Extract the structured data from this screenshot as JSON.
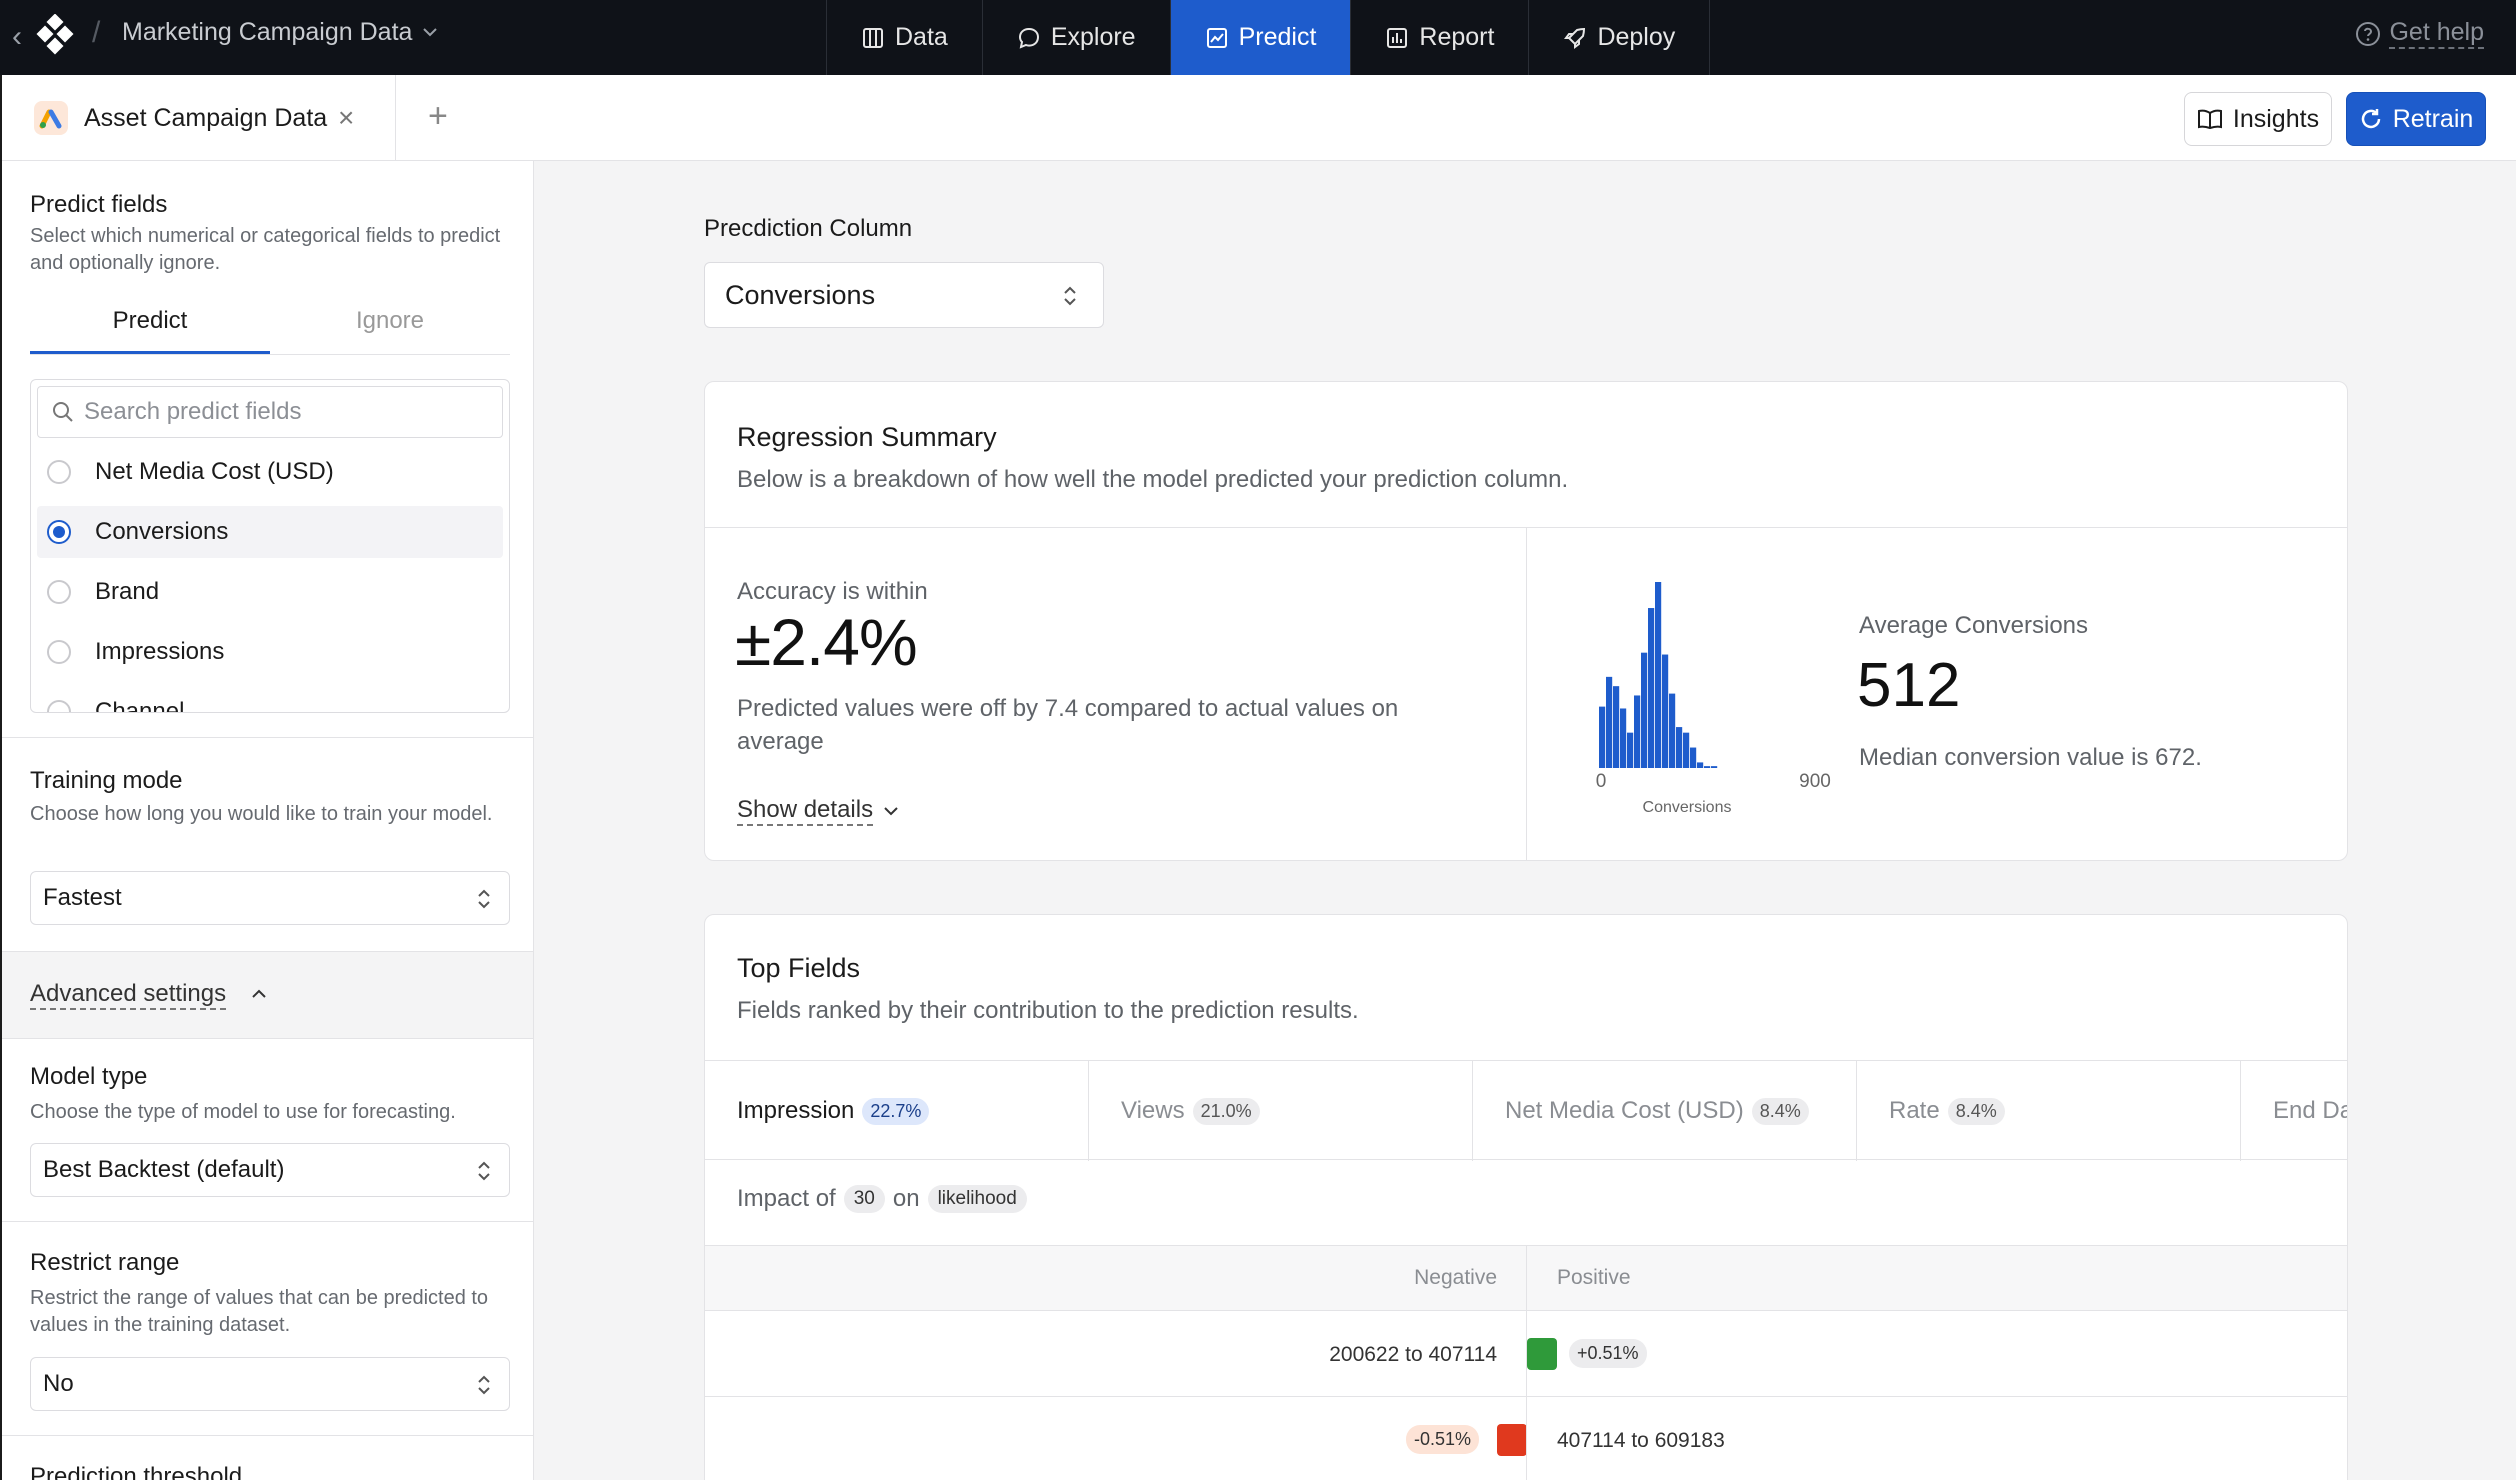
{
  "topbar": {
    "project_title": "Marketing Campaign Data",
    "tabs": [
      {
        "label": "Data",
        "icon": "table-icon",
        "active": false
      },
      {
        "label": "Explore",
        "icon": "chat-bubble-icon",
        "active": false
      },
      {
        "label": "Predict",
        "icon": "chart-line-icon",
        "active": true
      },
      {
        "label": "Report",
        "icon": "bar-chart-icon",
        "active": false
      },
      {
        "label": "Deploy",
        "icon": "rocket-icon",
        "active": false
      }
    ],
    "help_label": "Get help",
    "active_color": "#1e5ccc"
  },
  "subbar": {
    "file_tab_label": "Asset Campaign Data",
    "insights_label": "Insights",
    "retrain_label": "Retrain"
  },
  "sidebar": {
    "predict_fields": {
      "title": "Predict fields",
      "description": "Select which numerical or categorical fields to predict and optionally ignore.",
      "tabs": [
        "Predict",
        "Ignore"
      ],
      "search_placeholder": "Search predict fields",
      "options": [
        {
          "label": "Net Media Cost (USD)",
          "selected": false
        },
        {
          "label": "Conversions",
          "selected": true
        },
        {
          "label": "Brand",
          "selected": false
        },
        {
          "label": "Impressions",
          "selected": false
        },
        {
          "label": "Channel",
          "selected": false
        }
      ]
    },
    "training_mode": {
      "title": "Training mode",
      "description": "Choose how long you would like to train your model.",
      "value": "Fastest"
    },
    "advanced_label": "Advanced settings",
    "model_type": {
      "title": "Model type",
      "description": "Choose the type of model to use for forecasting.",
      "value": "Best Backtest (default)"
    },
    "restrict_range": {
      "title": "Restrict range",
      "description": "Restrict the range of values that can be predicted to values in the training dataset.",
      "value": "No"
    },
    "prediction_threshold_title": "Prediction threshold"
  },
  "main": {
    "prediction_column_label": "Precdiction Column",
    "prediction_column_value": "Conversions",
    "regression": {
      "title": "Regression Summary",
      "subtitle": "Below is a breakdown of how well the model predicted your prediction column.",
      "accuracy_label": "Accuracy is within",
      "accuracy_value": "±2.4%",
      "accuracy_desc": "Predicted values were off by 7.4 compared to actual values on average",
      "show_details": "Show details",
      "avg_label": "Average Conversions",
      "avg_value": "512",
      "median_desc": "Median conversion value is 672."
    },
    "top_fields": {
      "title": "Top Fields",
      "subtitle": "Fields ranked by their contribution to the prediction results.",
      "tabs": [
        {
          "label": "Impression",
          "pct": "22.7%",
          "active": true
        },
        {
          "label": "Views",
          "pct": "21.0%",
          "active": false
        },
        {
          "label": "Net Media Cost (USD)",
          "pct": "8.4%",
          "active": false
        },
        {
          "label": "Rate",
          "pct": "8.4%",
          "active": false
        },
        {
          "label": "End Da",
          "pct": "",
          "active": false
        }
      ],
      "impact_prefix": "Impact of",
      "impact_value": "30",
      "impact_on": "on",
      "impact_target": "likelihood",
      "col_negative": "Negative",
      "col_positive": "Positive",
      "rows": [
        {
          "range": "200622 to 407114",
          "side": "positive",
          "pct": "+0.51%",
          "color": "#2f9a3a"
        },
        {
          "range": "407114 to 609183",
          "side": "negative",
          "pct": "-0.51%",
          "color": "#e0391e"
        }
      ]
    }
  },
  "chart_data": {
    "type": "bar",
    "xlabel": "Conversions",
    "xlim": [
      0,
      900
    ],
    "x_tick_labels": [
      "0",
      "900"
    ],
    "categories": [
      "b1",
      "b2",
      "b3",
      "b4",
      "b5",
      "b6",
      "b7",
      "b8",
      "b9",
      "b10",
      "b11",
      "b12",
      "b13",
      "b14",
      "b15",
      "b16",
      "b17",
      "b18",
      "b19",
      "b20"
    ],
    "values": [
      33,
      49,
      44,
      32,
      19,
      39,
      62,
      86,
      100,
      61,
      40,
      22,
      19,
      11,
      3,
      1,
      1,
      0,
      0,
      0
    ]
  }
}
